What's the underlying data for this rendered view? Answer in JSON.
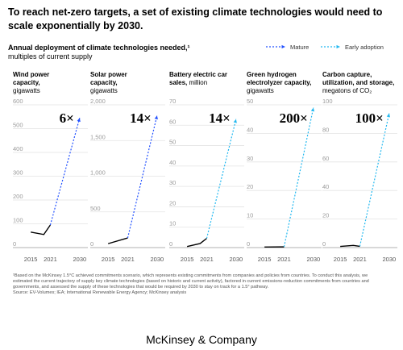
{
  "title": "To reach net-zero targets, a set of existing climate technologies would need to scale exponentially by 2030.",
  "subtitle": "Annual deployment of climate technologies needed,¹",
  "subtitle_unit": "multiples of current supply",
  "legend": [
    {
      "name": "Mature",
      "color": "#2251ff"
    },
    {
      "name": "Early adoption",
      "color": "#22b8f0"
    }
  ],
  "footnote": "¹Based on the McKinsey 1.5°C achieved commitments scenario, which represents existing commitments from companies and policies from countries. To conduct this analysis, we estimated the current trajectory of supply key climate technologies (based on historic and current activity), factored in current emissions-reduction commitments from countries and governments, and assessed the supply of these technologies that would be required by 2030 to stay on track for a 1.5° pathway.",
  "source": "Source: EV-Volumes; IEA; International Renewable Energy Agency; McKinsey analysis",
  "brand": "McKinsey & Company",
  "chart_data": [
    {
      "type": "line",
      "title": "Wind power capacity,",
      "unit": "gigawatts",
      "annotation": "6×",
      "xlim": [
        2012,
        2033
      ],
      "xticks": [
        2015,
        2021,
        2030
      ],
      "ylim": [
        0,
        600
      ],
      "yticks": [
        0,
        100,
        200,
        300,
        400,
        500,
        600
      ],
      "series": [
        {
          "color": "#000000",
          "x": [
            2015,
            2019,
            2021
          ],
          "values": [
            65,
            55,
            95
          ]
        },
        {
          "color": "#2251ff",
          "dashed": true,
          "x": [
            2021,
            2030
          ],
          "values": [
            95,
            545
          ]
        }
      ]
    },
    {
      "type": "line",
      "title": "Solar power capacity,",
      "unit": "gigawatts",
      "annotation": "14×",
      "xlim": [
        2012,
        2033
      ],
      "xticks": [
        2015,
        2021,
        2030
      ],
      "ylim": [
        0,
        2000
      ],
      "yticks": [
        0,
        500,
        {
          "value": 1000,
          "label": "1,000"
        },
        {
          "value": 1500,
          "label": "1,500"
        },
        {
          "value": 2000,
          "label": "2,000"
        }
      ],
      "series": [
        {
          "color": "#000000",
          "x": [
            2015,
            2021
          ],
          "values": [
            55,
            135
          ]
        },
        {
          "color": "#2251ff",
          "dashed": true,
          "x": [
            2021,
            2030
          ],
          "values": [
            135,
            1850
          ]
        }
      ]
    },
    {
      "type": "line",
      "title": "Battery electric car sales,",
      "unit": "million",
      "annotation": "14×",
      "xlim": [
        2012,
        2033
      ],
      "xticks": [
        2015,
        2021,
        2030
      ],
      "ylim": [
        0,
        70
      ],
      "yticks": [
        0,
        10,
        20,
        30,
        40,
        50,
        60,
        70
      ],
      "series": [
        {
          "color": "#000000",
          "x": [
            2015,
            2019,
            2021
          ],
          "values": [
            0.5,
            2,
            4.5
          ]
        },
        {
          "color": "#22b8f0",
          "dashed": true,
          "x": [
            2021,
            2030
          ],
          "values": [
            4.5,
            63
          ]
        }
      ]
    },
    {
      "type": "line",
      "title": "Green hydrogen electrolyzer capacity,",
      "unit": "gigawatts",
      "annotation": "200×",
      "xlim": [
        2012,
        2033
      ],
      "xticks": [
        2015,
        2021,
        2030
      ],
      "ylim": [
        0,
        50
      ],
      "yticks": [
        0,
        10,
        20,
        30,
        40,
        50
      ],
      "series": [
        {
          "color": "#000000",
          "x": [
            2015,
            2021
          ],
          "values": [
            0.2,
            0.25
          ]
        },
        {
          "color": "#22b8f0",
          "dashed": true,
          "x": [
            2021,
            2030
          ],
          "values": [
            0.25,
            49
          ]
        }
      ]
    },
    {
      "type": "line",
      "title": "Carbon capture, utilization, and storage,",
      "unit": "megatons of CO₂",
      "annotation": "100×",
      "xlim": [
        2012,
        2033
      ],
      "xticks": [
        2015,
        2021,
        2030
      ],
      "ylim": [
        0,
        100
      ],
      "yticks": [
        0,
        20,
        40,
        60,
        80,
        100
      ],
      "series": [
        {
          "color": "#000000",
          "x": [
            2015,
            2019,
            2021
          ],
          "values": [
            0.8,
            1.5,
            0.9
          ]
        },
        {
          "color": "#22b8f0",
          "dashed": true,
          "x": [
            2021,
            2030
          ],
          "values": [
            0.9,
            94
          ]
        }
      ]
    }
  ]
}
